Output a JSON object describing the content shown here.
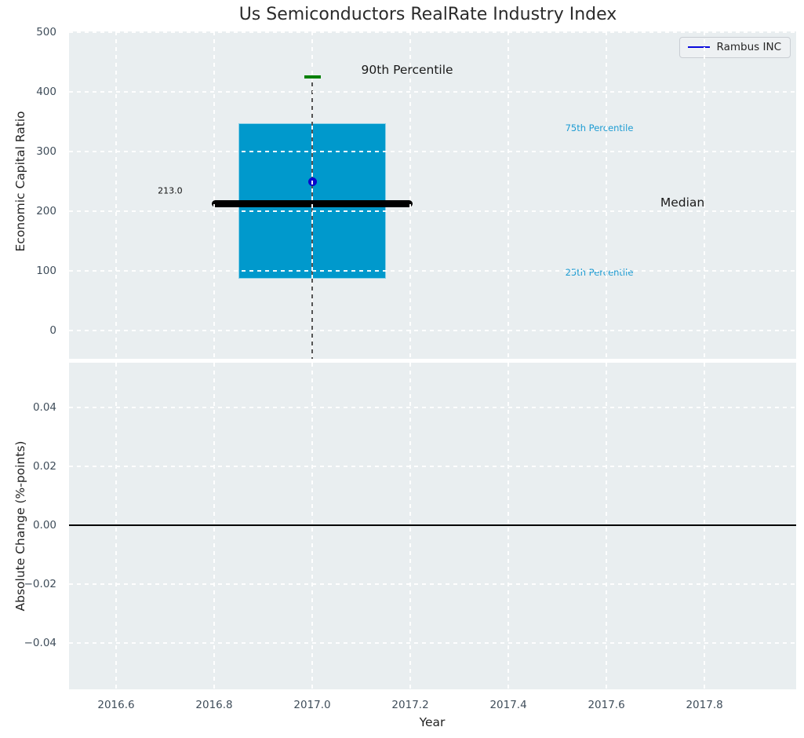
{
  "title": "Us Semiconductors RealRate Industry Index",
  "colors": {
    "figure_bg": "#ffffff",
    "plot_bg": "#e9eef0",
    "grid": "#ffffff",
    "box_fill": "#0099cc",
    "median_bar": "#000000",
    "whisker": "#555555",
    "cap_90": "#008000",
    "company_dot": "#0808cc",
    "legend_line": "#0808dd",
    "percentile_label": "#1d9cd3",
    "tick_label": "#3f4d5a",
    "zero_line": "#000000"
  },
  "chart_data": [
    {
      "type": "boxplot",
      "title": "Us Semiconductors RealRate Industry Index",
      "ylabel": "Economic Capital Ratio",
      "xlabel": "Year",
      "xlim": [
        2016.504,
        2017.987
      ],
      "ylim": [
        -47.5,
        501.5
      ],
      "ytick_values": [
        0,
        100,
        200,
        300,
        400,
        500
      ],
      "ytick_labels": [
        "0",
        "100",
        "200",
        "300",
        "400",
        "500"
      ],
      "xtick_values": [
        2016.6,
        2016.8,
        2017.0,
        2017.2,
        2017.4,
        2017.6,
        2017.8
      ],
      "xtick_labels": [
        "2016.6",
        "2016.8",
        "2017.0",
        "2017.2",
        "2017.4",
        "2017.6",
        "2017.8"
      ],
      "grid": "white-dashed",
      "legend": {
        "position": "upper-right",
        "entries": [
          {
            "label": "Rambus INC",
            "color": "#0808dd"
          }
        ]
      },
      "box": {
        "x_center": 2017.0,
        "x_left": 2016.85,
        "x_right": 2017.15,
        "p25": 87,
        "median": 213.0,
        "p75": 347,
        "p90": 425,
        "whisker_low_clipped_below_axis": true,
        "fill": "#0099cc"
      },
      "median_bar": {
        "x_left": 2016.795,
        "x_right": 2017.205,
        "value": 213.0,
        "color": "#000000"
      },
      "company_point": {
        "label": "Rambus INC",
        "x": 2017.0,
        "value": 250,
        "color": "#0808cc"
      },
      "cap_90": {
        "value": 425,
        "color": "#008000"
      },
      "annotations": [
        {
          "id": "median-value-label",
          "text": "213.0",
          "x": 2016.685,
          "value": 234,
          "color": "#111111",
          "size": 11
        },
        {
          "id": "p90-label",
          "text": "90th Percentile",
          "x": 2017.1,
          "value": 437,
          "color": "#1a1a1a",
          "size": 15.5
        },
        {
          "id": "p75-label",
          "text": "75th Percentile",
          "x": 2017.516,
          "value": 339,
          "color": "#1d9cd3",
          "size": 11.5
        },
        {
          "id": "median-label",
          "text": "Median",
          "x": 2017.71,
          "value": 214,
          "color": "#1a1a1a",
          "size": 15.5
        },
        {
          "id": "p25-label",
          "text": "25th Percentile",
          "x": 2017.516,
          "value": 97,
          "color": "#1d9cd3",
          "size": 11.5
        }
      ]
    },
    {
      "type": "line",
      "ylabel": "Absolute Change (%-points)",
      "xlabel": "Year",
      "xlim": [
        2016.504,
        2017.987
      ],
      "ylim": [
        -0.0557,
        0.0552
      ],
      "ytick_values": [
        0.04,
        0.02,
        0,
        -0.02,
        -0.04
      ],
      "ytick_labels": [
        "0.04",
        "0.02",
        "0.00",
        "−0.02",
        "−0.04"
      ],
      "xtick_values": [
        2016.6,
        2016.8,
        2017.0,
        2017.2,
        2017.4,
        2017.6,
        2017.8
      ],
      "xtick_labels": [
        "2016.6",
        "2016.8",
        "2017.0",
        "2017.2",
        "2017.4",
        "2017.6",
        "2017.8"
      ],
      "grid": "white-dashed",
      "zero_line": {
        "value": 0,
        "color": "#000000"
      },
      "series": []
    }
  ]
}
